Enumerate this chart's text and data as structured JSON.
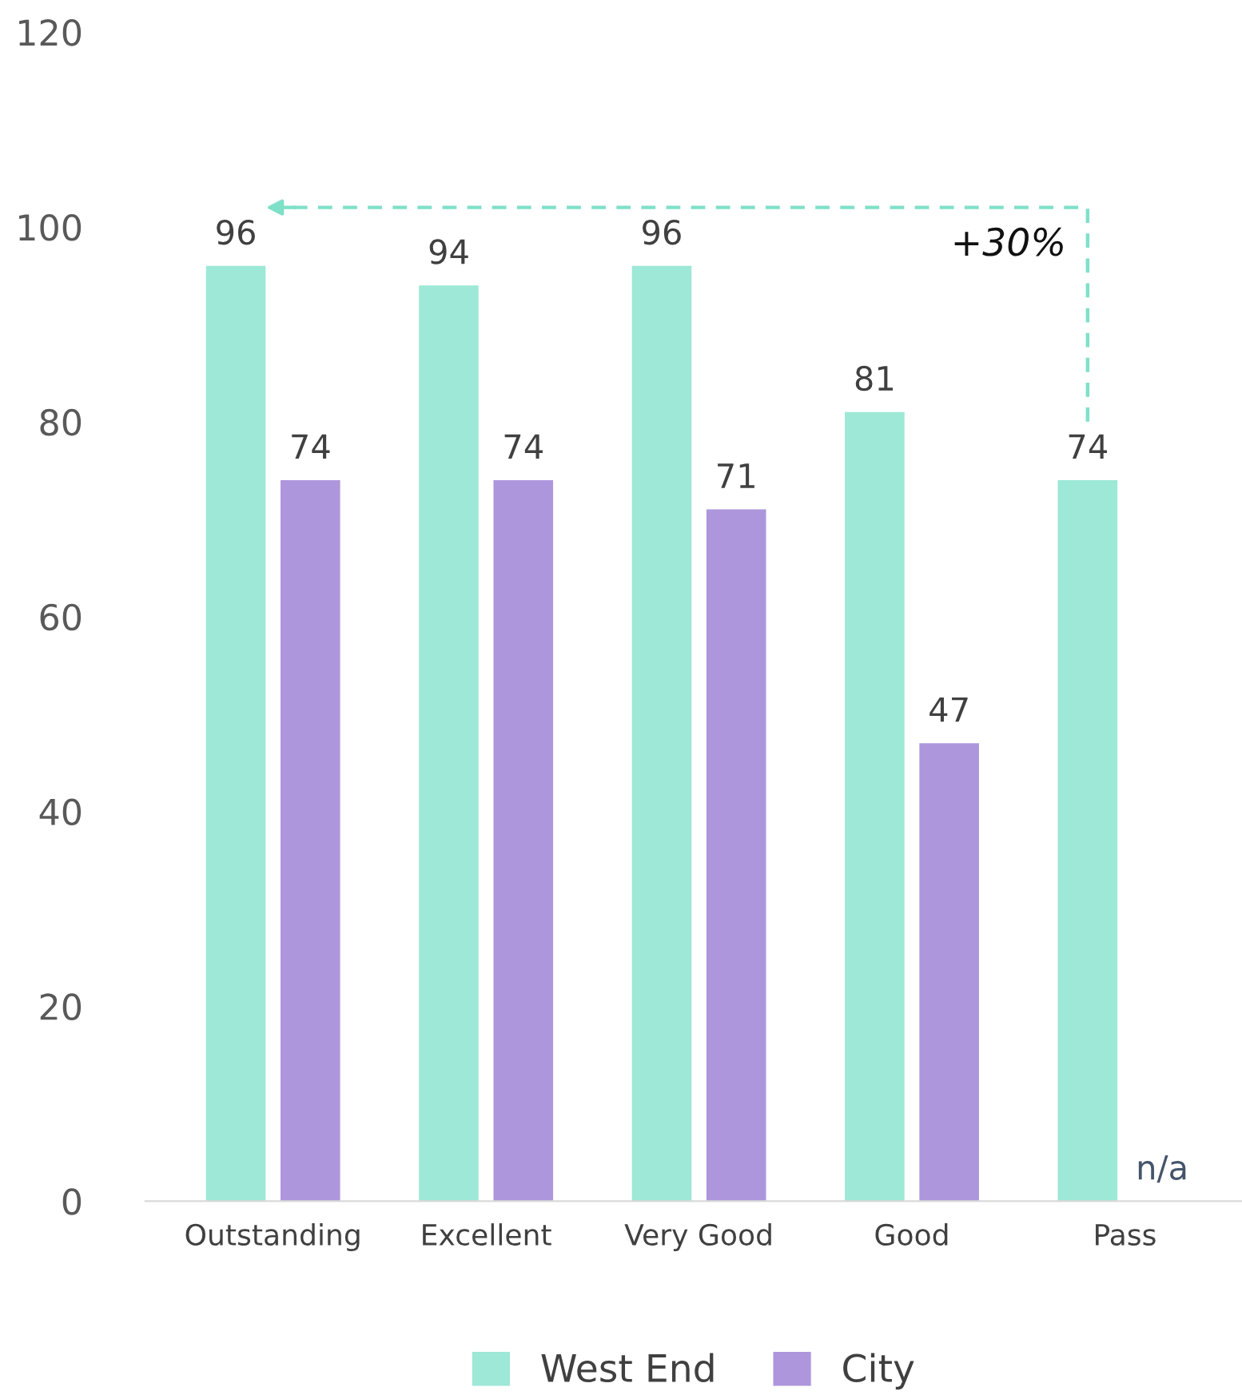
{
  "chart_data": {
    "type": "bar",
    "categories": [
      "Outstanding",
      "Excellent",
      "Very Good",
      "Good",
      "Pass"
    ],
    "series": [
      {
        "name": "West End",
        "color": "#9de8d6",
        "values": [
          96,
          94,
          96,
          81,
          74
        ],
        "value_labels": [
          "96",
          "94",
          "96",
          "81",
          "74"
        ]
      },
      {
        "name": "City",
        "color": "#ae96dc",
        "values": [
          74,
          74,
          71,
          47,
          null
        ],
        "value_labels": [
          "74",
          "74",
          "71",
          "47",
          "n/a"
        ]
      }
    ],
    "ylim": [
      0,
      120
    ],
    "yticks": [
      0,
      20,
      40,
      60,
      80,
      100,
      120
    ],
    "annotations": [
      "+30%"
    ],
    "grid": false,
    "legend": "bottom"
  }
}
